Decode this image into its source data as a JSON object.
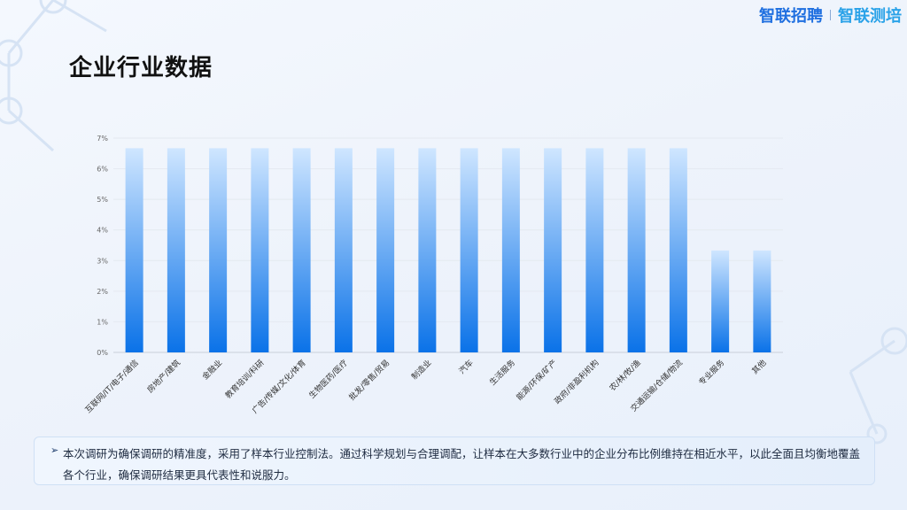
{
  "header": {
    "logo_primary": "智联招聘",
    "logo_secondary": "智联测培",
    "brand_color": "#1f6fe0"
  },
  "page_title": "企业行业数据",
  "chart_data": {
    "type": "bar",
    "categories": [
      "互联网/IT/电子/通信",
      "房地产/建筑",
      "金融业",
      "教育培训/科研",
      "广告/传媒/文化/体育",
      "生物医药/医疗",
      "批发/零售/贸易",
      "制造业",
      "汽车",
      "生活服务",
      "能源/环保/矿产",
      "政府/非盈利机构",
      "农/林/牧/渔",
      "交通运输/仓储/物流",
      "专业服务",
      "其他"
    ],
    "values": [
      6.67,
      6.67,
      6.67,
      6.67,
      6.67,
      6.67,
      6.67,
      6.67,
      6.67,
      6.67,
      6.67,
      6.67,
      6.67,
      6.67,
      3.33,
      3.33
    ],
    "y_ticks": [
      "0%",
      "1%",
      "2%",
      "3%",
      "4%",
      "5%",
      "6%",
      "7%"
    ],
    "ylim": [
      0,
      7
    ],
    "grid": true,
    "bar_color_top": "#cfe6ff",
    "bar_color_bottom": "#0a72e8"
  },
  "note": {
    "bullet": "➢",
    "text": "本次调研为确保调研的精准度，采用了样本行业控制法。通过科学规划与合理调配，让样本在大多数行业中的企业分布比例维持在相近水平，以此全面且均衡地覆盖各个行业，确保调研结果更具代表性和说服力。"
  }
}
